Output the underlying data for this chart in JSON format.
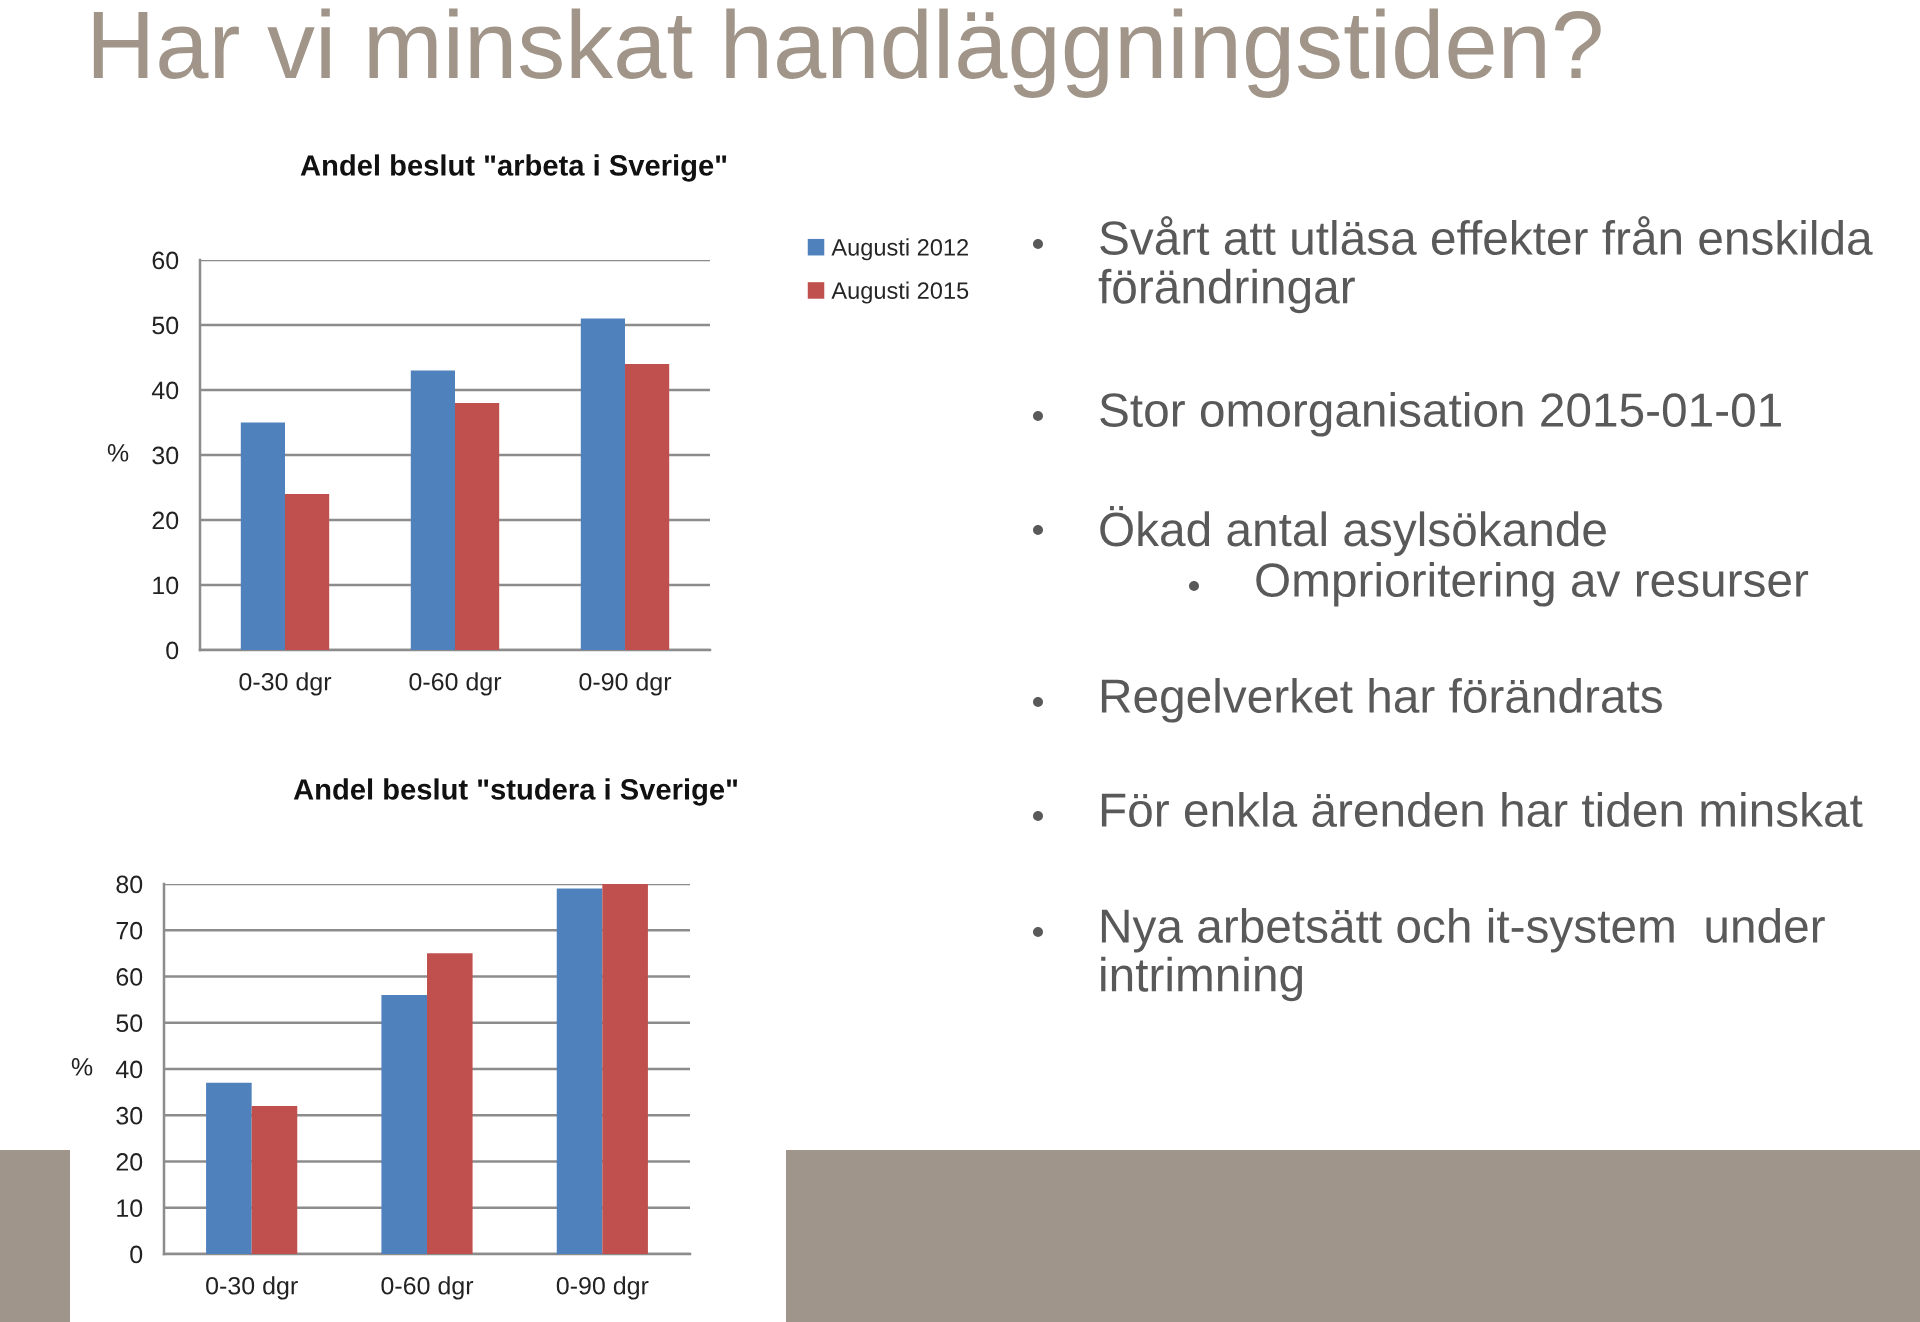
{
  "chart_data": [
    {
      "type": "other",
      "title": "Har vi minskat handläggningstiden?",
      "annotations": [
        "Svårt att utläsa effekter från enskilda förändringar",
        "Stor omorganisation 2015-01-01",
        "Ökad antal asylsökande",
        "Omprioritering av resurser",
        "Regelverket har förändrats",
        "För enkla ärenden har tiden minskat",
        "Nya arbetsätt och it-system  under intrimning"
      ]
    },
    {
      "type": "bar",
      "title": "Andel beslut \"arbeta i Sverige\"",
      "ylabel": "%",
      "categories": [
        "0-30 dgr",
        "0-60 dgr",
        "0-90 dgr"
      ],
      "series": [
        {
          "name": "Augusti 2012",
          "color": "#4f81bd",
          "values": [
            35,
            43,
            51
          ]
        },
        {
          "name": "Augusti 2015",
          "color": "#c0504d",
          "values": [
            24,
            38,
            44
          ]
        }
      ],
      "ylim": [
        0,
        60
      ],
      "yticks": [
        0,
        10,
        20,
        30,
        40,
        50,
        60
      ],
      "grid": "y",
      "legend": "right"
    },
    {
      "type": "bar",
      "title": "Andel beslut \"studera i Sverige\"",
      "ylabel": "%",
      "categories": [
        "0-30 dgr",
        "0-60 dgr",
        "0-90 dgr"
      ],
      "series": [
        {
          "color": "#4f81bd",
          "values": [
            37,
            56,
            79
          ]
        },
        {
          "color": "#c0504d",
          "values": [
            32,
            65,
            80
          ]
        }
      ],
      "ylim": [
        0,
        80
      ],
      "yticks": [
        0,
        10,
        20,
        30,
        40,
        50,
        60,
        70,
        80
      ],
      "grid": "y"
    }
  ]
}
